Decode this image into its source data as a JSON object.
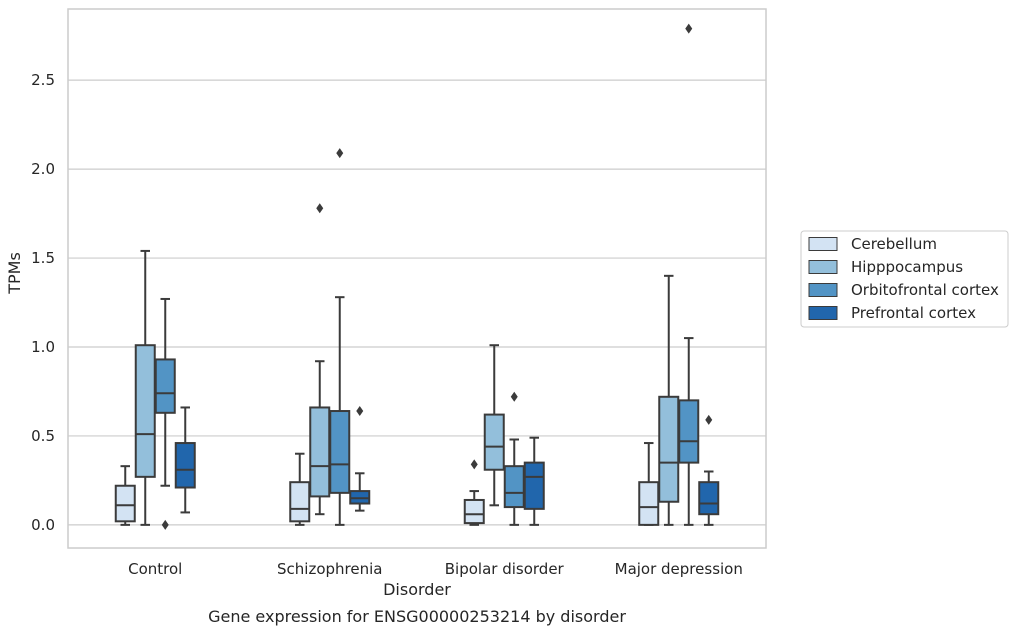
{
  "caption": "Gene expression for ENSG00000253214 by disorder",
  "chart_data": {
    "type": "box",
    "xlabel": "Disorder",
    "ylabel": "TPMs",
    "ylim": [
      -0.13,
      2.9
    ],
    "yticks": [
      0.0,
      0.5,
      1.0,
      1.5,
      2.0,
      2.5
    ],
    "ytick_labels": [
      "0.0",
      "0.5",
      "1.0",
      "1.5",
      "2.0",
      "2.5"
    ],
    "grid": "horizontal",
    "legend_position": "right",
    "categories": [
      "Control",
      "Schizophrenia",
      "Bipolar disorder",
      "Major depression"
    ],
    "series": [
      {
        "name": "Cerebellum",
        "color": "#d3e3f3",
        "boxes": [
          {
            "whisker_low": 0.0,
            "q1": 0.02,
            "median": 0.11,
            "q3": 0.22,
            "whisker_high": 0.33,
            "outliers": []
          },
          {
            "whisker_low": 0.0,
            "q1": 0.02,
            "median": 0.09,
            "q3": 0.24,
            "whisker_high": 0.4,
            "outliers": []
          },
          {
            "whisker_low": 0.0,
            "q1": 0.01,
            "median": 0.06,
            "q3": 0.14,
            "whisker_high": 0.19,
            "outliers": [
              0.34
            ]
          },
          {
            "whisker_low": 0.0,
            "q1": 0.0,
            "median": 0.1,
            "q3": 0.24,
            "whisker_high": 0.46,
            "outliers": []
          }
        ]
      },
      {
        "name": "Hipppocampus",
        "color": "#93bfdb",
        "boxes": [
          {
            "whisker_low": 0.0,
            "q1": 0.27,
            "median": 0.51,
            "q3": 1.01,
            "whisker_high": 1.54,
            "outliers": []
          },
          {
            "whisker_low": 0.06,
            "q1": 0.16,
            "median": 0.33,
            "q3": 0.66,
            "whisker_high": 0.92,
            "outliers": [
              1.78
            ]
          },
          {
            "whisker_low": 0.11,
            "q1": 0.31,
            "median": 0.44,
            "q3": 0.62,
            "whisker_high": 1.01,
            "outliers": []
          },
          {
            "whisker_low": 0.0,
            "q1": 0.13,
            "median": 0.35,
            "q3": 0.72,
            "whisker_high": 1.4,
            "outliers": []
          }
        ]
      },
      {
        "name": "Orbitofrontal cortex",
        "color": "#5294c5",
        "boxes": [
          {
            "whisker_low": 0.22,
            "q1": 0.63,
            "median": 0.74,
            "q3": 0.93,
            "whisker_high": 1.27,
            "outliers": [
              0.0
            ]
          },
          {
            "whisker_low": 0.0,
            "q1": 0.18,
            "median": 0.34,
            "q3": 0.64,
            "whisker_high": 1.28,
            "outliers": [
              2.09
            ]
          },
          {
            "whisker_low": 0.0,
            "q1": 0.1,
            "median": 0.18,
            "q3": 0.33,
            "whisker_high": 0.48,
            "outliers": [
              0.72
            ]
          },
          {
            "whisker_low": 0.0,
            "q1": 0.35,
            "median": 0.47,
            "q3": 0.7,
            "whisker_high": 1.05,
            "outliers": [
              2.79
            ]
          }
        ]
      },
      {
        "name": "Prefrontal cortex",
        "color": "#2166ac",
        "boxes": [
          {
            "whisker_low": 0.07,
            "q1": 0.21,
            "median": 0.31,
            "q3": 0.46,
            "whisker_high": 0.66,
            "outliers": []
          },
          {
            "whisker_low": 0.08,
            "q1": 0.12,
            "median": 0.15,
            "q3": 0.19,
            "whisker_high": 0.29,
            "outliers": [
              0.64
            ]
          },
          {
            "whisker_low": 0.0,
            "q1": 0.09,
            "median": 0.27,
            "q3": 0.35,
            "whisker_high": 0.49,
            "outliers": []
          },
          {
            "whisker_low": 0.0,
            "q1": 0.06,
            "median": 0.12,
            "q3": 0.24,
            "whisker_high": 0.3,
            "outliers": [
              0.59
            ]
          }
        ]
      }
    ]
  }
}
